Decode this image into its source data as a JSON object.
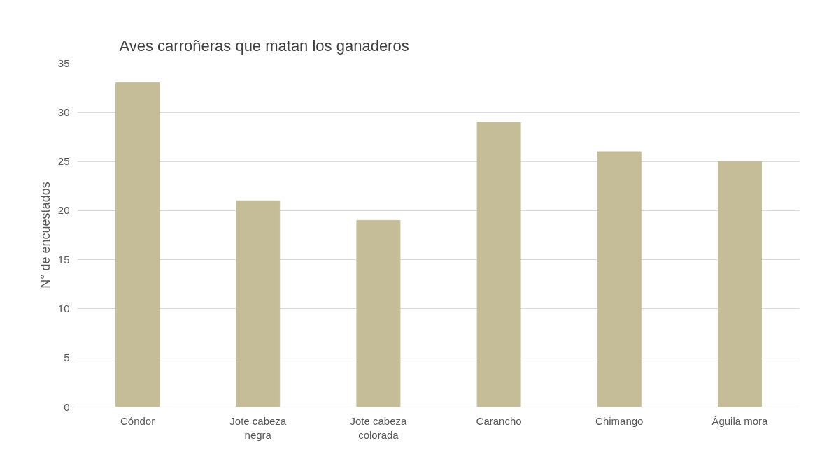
{
  "chart_data": {
    "type": "bar",
    "title": "Aves carroñeras que matan los ganaderos",
    "ylabel": "N° de encuestados",
    "categories": [
      "Cóndor",
      "Jote cabeza negra",
      "Jote cabeza colorada",
      "Carancho",
      "Chimango",
      "Águila mora"
    ],
    "series": [
      {
        "color": "#c4bd97",
        "values": [
          33,
          21,
          19,
          29,
          26,
          25
        ]
      }
    ],
    "ylim": [
      0,
      35
    ],
    "yticks": [
      0,
      5,
      10,
      15,
      20,
      25,
      30,
      35
    ],
    "grid": "y"
  }
}
